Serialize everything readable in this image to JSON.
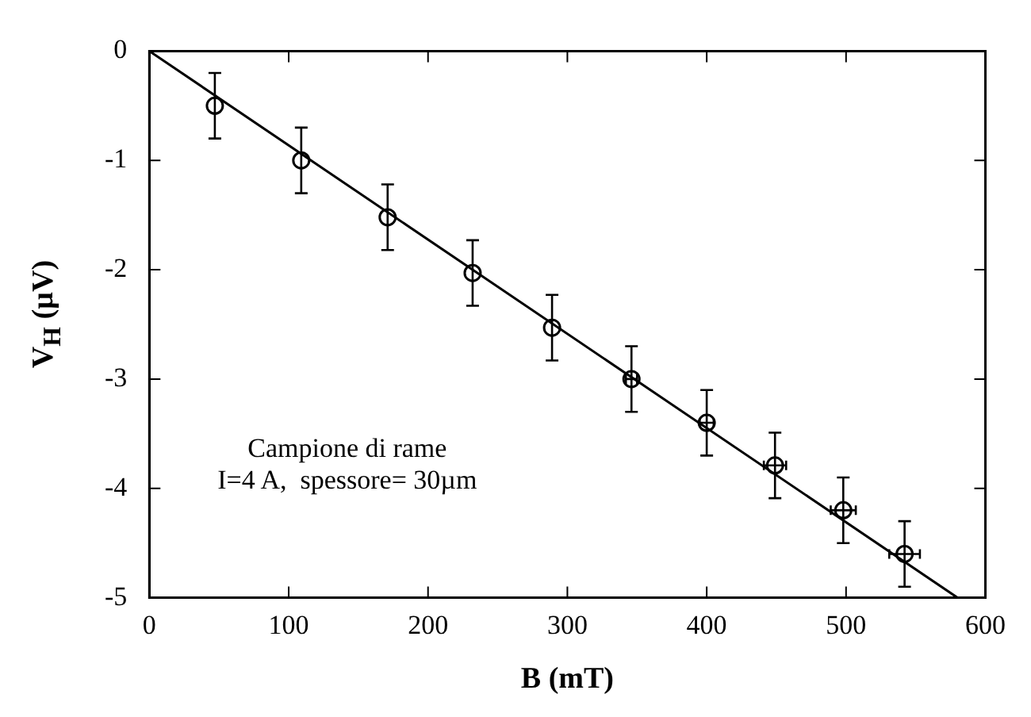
{
  "chart_data": {
    "type": "scatter",
    "xlabel": "B (mT)",
    "ylabel": "V$_{H}$ (µV)",
    "annotations": [
      "Campione di rame",
      "I=4 A,  spessore= 30µm"
    ],
    "xlim": [
      0,
      600
    ],
    "xticks": [
      0,
      100,
      200,
      300,
      400,
      500,
      600
    ],
    "ylim": [
      -5,
      0
    ],
    "yticks": [
      -5,
      -4,
      -3,
      -2,
      -1,
      0
    ],
    "grid": false,
    "legend": false,
    "marker": "circle",
    "series": [
      {
        "color": "#000000",
        "x": [
          47,
          109,
          171,
          232,
          289,
          346,
          400,
          449,
          498,
          542
        ],
        "values": [
          -0.5,
          -1.0,
          -1.52,
          -2.03,
          -2.53,
          -3.0,
          -3.4,
          -3.79,
          -4.2,
          -4.6
        ],
        "errors": [
          0.3,
          0.3,
          0.3,
          0.3,
          0.3,
          0.3,
          0.3,
          0.3,
          0.3,
          0.3
        ],
        "xerrors": [
          null,
          null,
          null,
          null,
          null,
          4,
          5,
          8,
          9,
          11
        ]
      },
      {
        "type": "line",
        "color": "#000000",
        "x": [
          0,
          580
        ],
        "values": [
          0,
          -5
        ],
        "marker": "none",
        "line_style": "solid"
      }
    ]
  }
}
